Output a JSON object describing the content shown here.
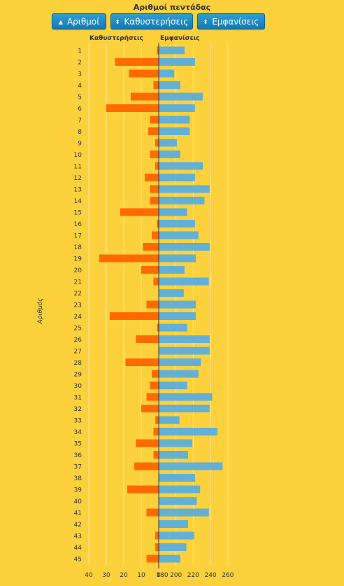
{
  "title": "Αριθμοί πεντάδας",
  "buttons": [
    {
      "icon": "caret-up-icon",
      "label": "Αριθμοί"
    },
    {
      "icon": "sort-icon",
      "label": "Καθυστερήσεις"
    },
    {
      "icon": "sort-icon",
      "label": "Εμφανίσεις"
    }
  ],
  "headers": {
    "left": "Καθυστερήσεις",
    "right": "Εμφανίσεις"
  },
  "chart_data": {
    "type": "bar",
    "orientation": "horizontal",
    "ylabel": "Αριθμός",
    "categories": [
      "1",
      "2",
      "3",
      "4",
      "5",
      "6",
      "7",
      "8",
      "9",
      "10",
      "11",
      "12",
      "13",
      "14",
      "15",
      "16",
      "17",
      "18",
      "19",
      "20",
      "21",
      "22",
      "23",
      "24",
      "25",
      "26",
      "27",
      "28",
      "29",
      "30",
      "31",
      "32",
      "33",
      "34",
      "35",
      "36",
      "37",
      "38",
      "39",
      "40",
      "41",
      "42",
      "43",
      "44",
      "45"
    ],
    "series": [
      {
        "name": "Καθυστερήσεις",
        "color": "#ff6a00",
        "xlim": [
          0,
          40
        ],
        "direction": "left",
        "ticks": [
          "40",
          "30",
          "20",
          "10",
          "0"
        ],
        "values": [
          1,
          25,
          17,
          3,
          16,
          30,
          5,
          6,
          2,
          5,
          2,
          8,
          5,
          5,
          22,
          1,
          4,
          9,
          34,
          10,
          3,
          0,
          7,
          28,
          1,
          13,
          0,
          19,
          4,
          5,
          7,
          10,
          2,
          3,
          13,
          3,
          14,
          0,
          18,
          0,
          7,
          0,
          2,
          2,
          7
        ]
      },
      {
        "name": "Εμφανίσεις",
        "color": "#62b0d6",
        "xlim": [
          180,
          260
        ],
        "direction": "right",
        "ticks": [
          "180",
          "200",
          "220",
          "240",
          "260"
        ],
        "values": [
          210,
          222,
          198,
          205,
          231,
          222,
          216,
          216,
          201,
          205,
          231,
          222,
          239,
          233,
          213,
          222,
          226,
          239,
          223,
          210,
          238,
          209,
          223,
          223,
          213,
          239,
          239,
          229,
          226,
          213,
          242,
          239,
          204,
          248,
          219,
          214,
          254,
          222,
          228,
          224,
          238,
          214,
          221,
          212,
          205
        ]
      }
    ]
  }
}
